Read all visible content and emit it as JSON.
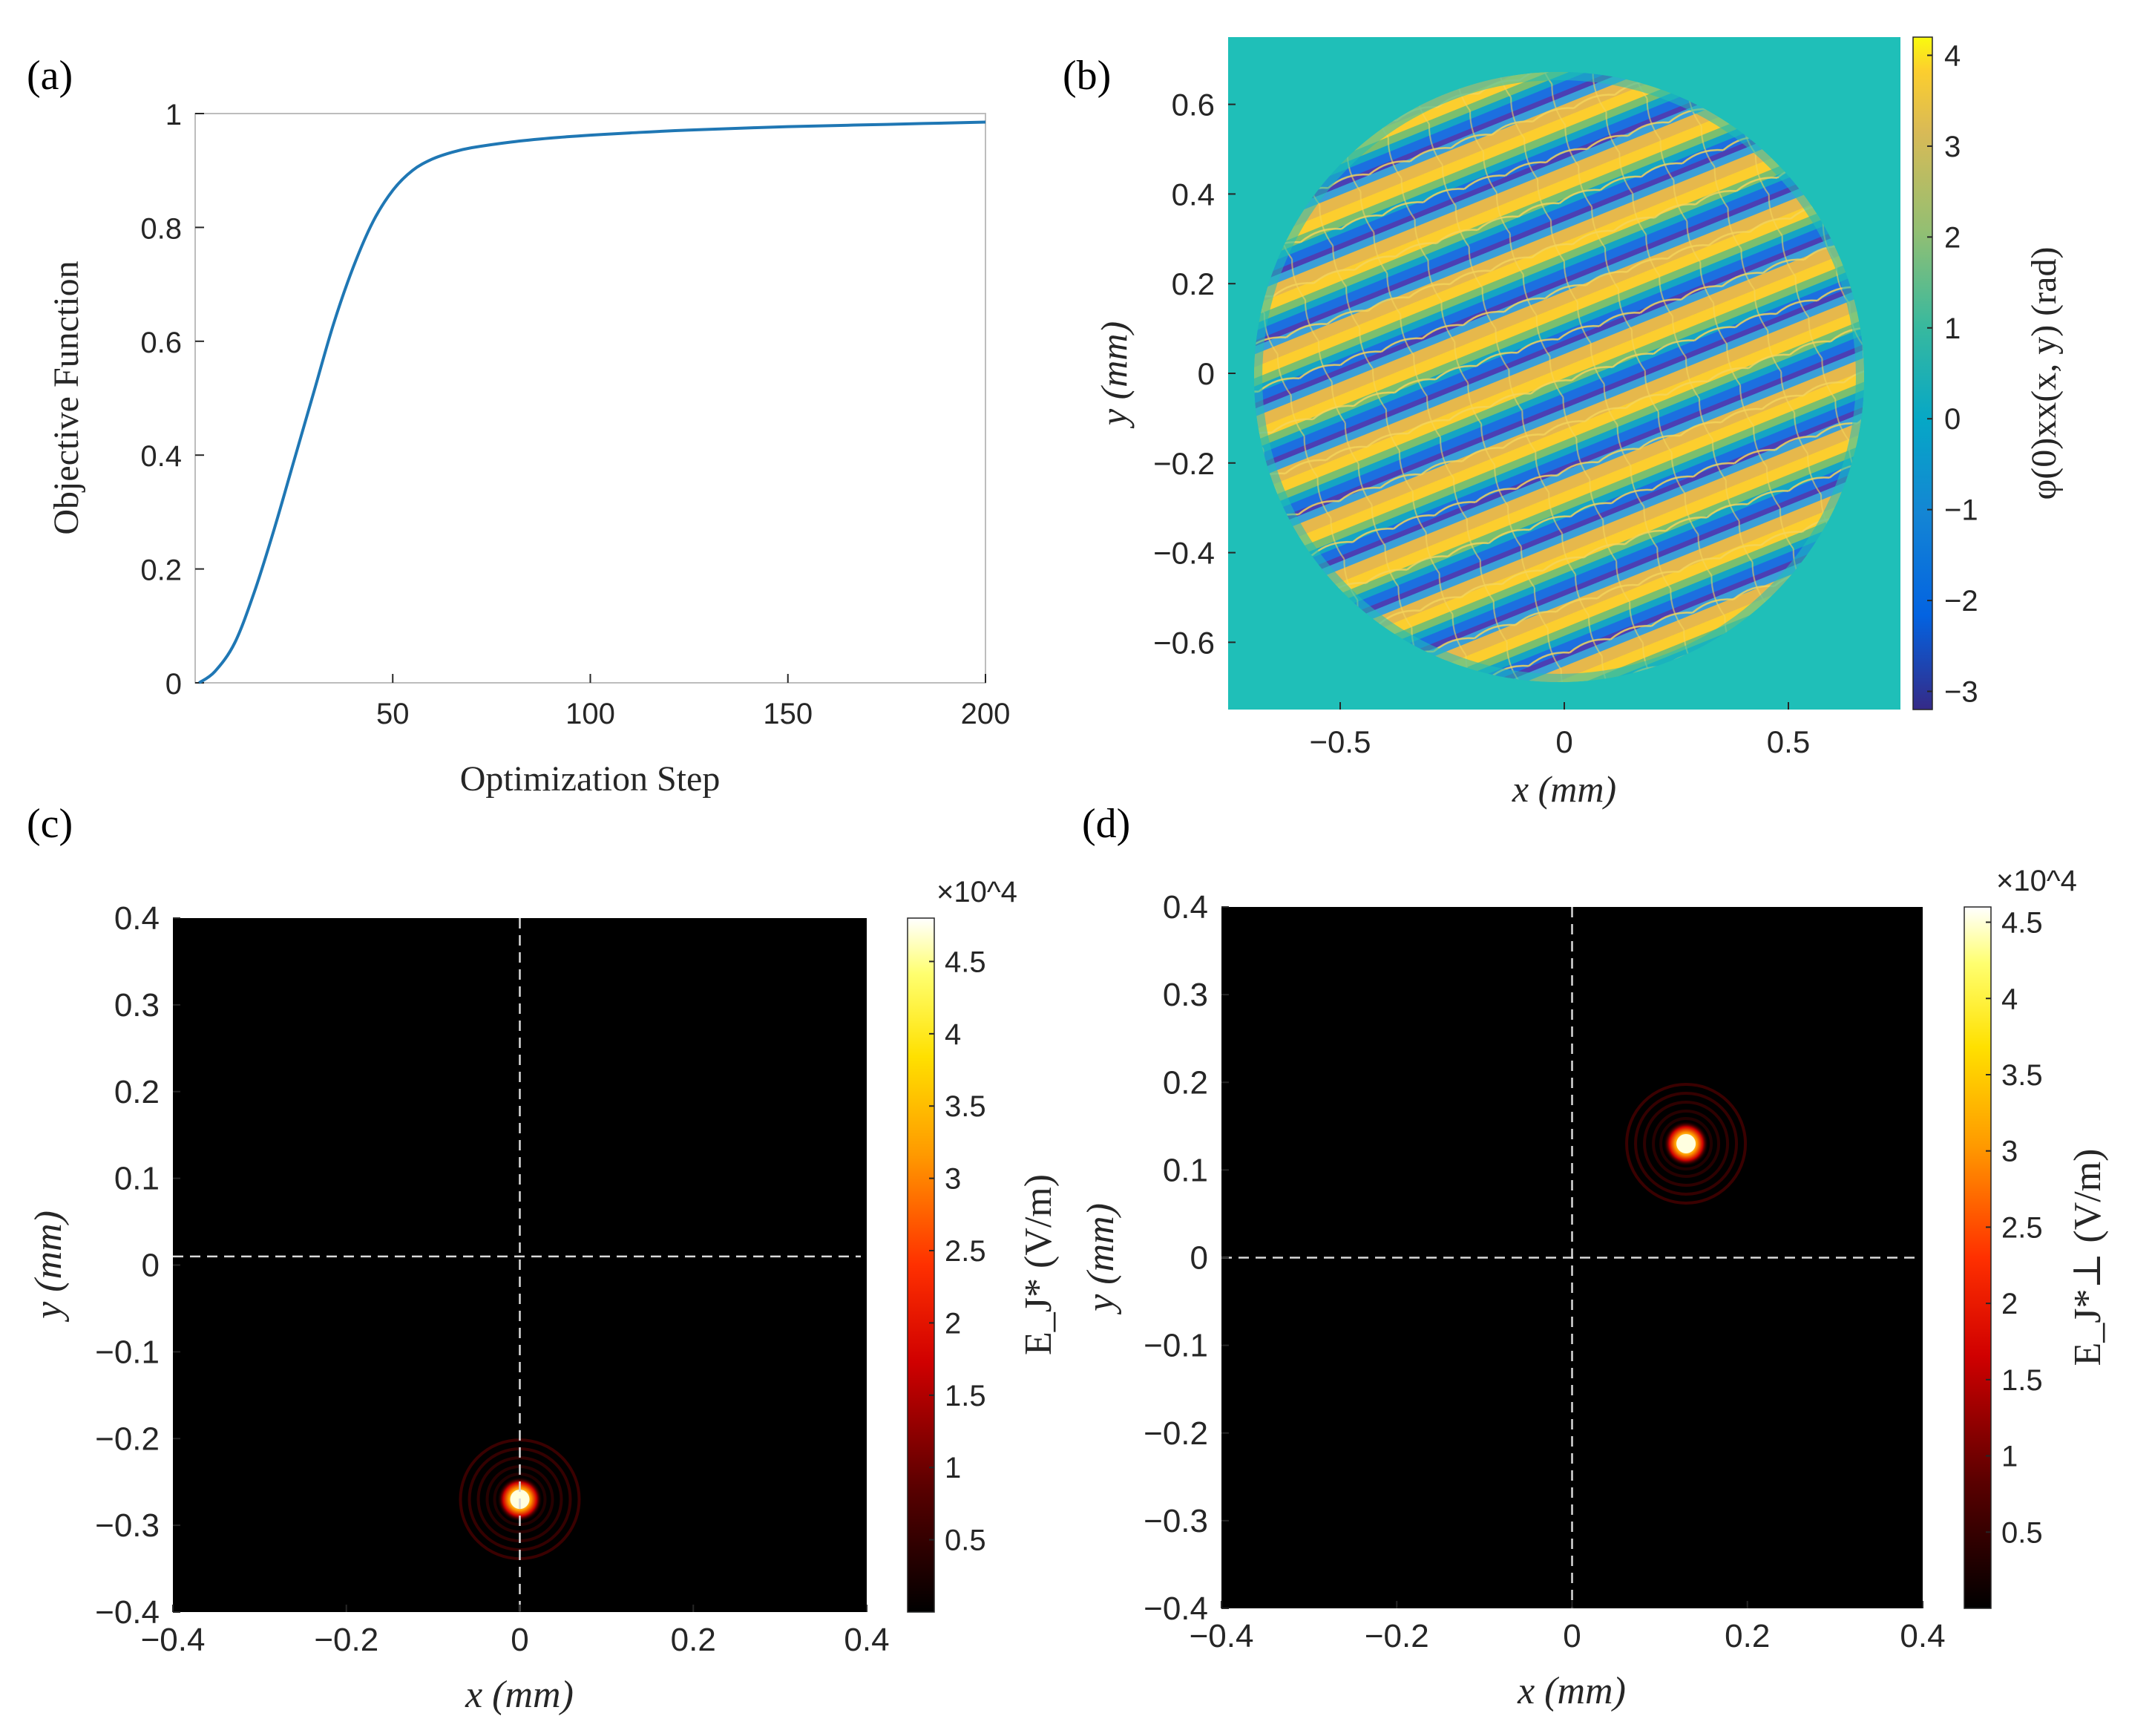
{
  "colors": {
    "line": "#1f77b4",
    "axis": "#262626",
    "box": "#bdbdbd",
    "phase_background": "#1fbfb8",
    "dashed": "#d9d9d9",
    "heat_bg": "#000000"
  },
  "chart_data": [
    {
      "id": "a",
      "panel_label": "(a)",
      "type": "line",
      "title": "",
      "xlabel": "Optimization Step",
      "ylabel": "Objective Function",
      "xlim": [
        0,
        200
      ],
      "ylim": [
        0,
        1
      ],
      "xticks": [
        50,
        100,
        150,
        200
      ],
      "yticks": [
        0,
        0.2,
        0.4,
        0.6,
        0.8,
        1
      ],
      "xtick_labels": [
        "50",
        "100",
        "150",
        "200"
      ],
      "ytick_labels": [
        "0",
        "0.2",
        "0.4",
        "0.6",
        "0.8",
        "1"
      ],
      "x": [
        1,
        5,
        10,
        15,
        20,
        25,
        30,
        35,
        40,
        45,
        50,
        55,
        60,
        65,
        70,
        80,
        90,
        100,
        110,
        125,
        150,
        175,
        200
      ],
      "y": [
        0.0,
        0.02,
        0.07,
        0.16,
        0.27,
        0.39,
        0.51,
        0.63,
        0.73,
        0.81,
        0.865,
        0.9,
        0.92,
        0.932,
        0.94,
        0.95,
        0.957,
        0.962,
        0.966,
        0.971,
        0.977,
        0.981,
        0.985
      ]
    },
    {
      "id": "b",
      "panel_label": "(b)",
      "type": "heatmap",
      "title": "",
      "xlabel": "x (mm)",
      "ylabel": "y (mm)",
      "xlim": [
        -0.75,
        0.75
      ],
      "ylim": [
        -0.75,
        0.75
      ],
      "xticks": [
        -0.5,
        0,
        0.5
      ],
      "yticks": [
        -0.6,
        -0.4,
        -0.2,
        0,
        0.2,
        0.4,
        0.6
      ],
      "xtick_labels": [
        "−0.5",
        "0",
        "0.5"
      ],
      "ytick_labels": [
        "−0.6",
        "−0.4",
        "−0.2",
        "0",
        "0.2",
        "0.4",
        "0.6"
      ],
      "aperture_radius_mm": 0.7,
      "colorbar": {
        "label": "φ(0)xx(x, y) (rad)",
        "range": [
          -3.2,
          4.2
        ],
        "ticks": [
          -3,
          -2,
          -1,
          0,
          1,
          2,
          3,
          4
        ],
        "tick_labels": [
          "−3",
          "−2",
          "−1",
          "0",
          "1",
          "2",
          "3",
          "4"
        ],
        "colormap": "parula"
      }
    },
    {
      "id": "c",
      "panel_label": "(c)",
      "type": "heatmap",
      "title": "",
      "xlabel": "x (mm)",
      "ylabel": "y (mm)",
      "xlim": [
        -0.4,
        0.4
      ],
      "ylim": [
        -0.4,
        0.4
      ],
      "xticks": [
        -0.4,
        -0.2,
        0,
        0.2,
        0.4
      ],
      "yticks": [
        -0.4,
        -0.3,
        -0.2,
        -0.1,
        0,
        0.1,
        0.2,
        0.3,
        0.4
      ],
      "xtick_labels": [
        "−0.4",
        "−0.2",
        "0",
        "0.2",
        "0.4"
      ],
      "ytick_labels": [
        "−0.4",
        "−0.3",
        "−0.2",
        "−0.1",
        "0",
        "0.1",
        "0.2",
        "0.3",
        "0.4"
      ],
      "focus": {
        "x": 0.0,
        "y": -0.27,
        "peak": 48000
      },
      "crosshair": {
        "x": 0.0,
        "y": 0.01
      },
      "colorbar": {
        "label": "E_J* (V/m)",
        "range": [
          0,
          48000
        ],
        "exponent_label": "×10^4",
        "ticks": [
          5000,
          10000,
          15000,
          20000,
          25000,
          30000,
          35000,
          40000,
          45000
        ],
        "tick_labels": [
          "0.5",
          "1",
          "1.5",
          "2",
          "2.5",
          "3",
          "3.5",
          "4",
          "4.5"
        ],
        "colormap": "hot"
      }
    },
    {
      "id": "d",
      "panel_label": "(d)",
      "type": "heatmap",
      "title": "",
      "xlabel": "x (mm)",
      "ylabel": "y (mm)",
      "xlim": [
        -0.4,
        0.4
      ],
      "ylim": [
        -0.4,
        0.4
      ],
      "xticks": [
        -0.4,
        -0.2,
        0,
        0.2,
        0.4
      ],
      "yticks": [
        -0.4,
        -0.3,
        -0.2,
        -0.1,
        0,
        0.1,
        0.2,
        0.3,
        0.4
      ],
      "xtick_labels": [
        "−0.4",
        "−0.2",
        "0",
        "0.2",
        "0.4"
      ],
      "ytick_labels": [
        "−0.4",
        "−0.3",
        "−0.2",
        "−0.1",
        "0",
        "0.1",
        "0.2",
        "0.3",
        "0.4"
      ],
      "focus": {
        "x": 0.13,
        "y": 0.13,
        "peak": 46000
      },
      "crosshair": {
        "x": 0.0,
        "y": 0.0
      },
      "colorbar": {
        "label": "E_J*⊥ (V/m)",
        "range": [
          0,
          46000
        ],
        "exponent_label": "×10^4",
        "ticks": [
          5000,
          10000,
          15000,
          20000,
          25000,
          30000,
          35000,
          40000,
          45000
        ],
        "tick_labels": [
          "0.5",
          "1",
          "1.5",
          "2",
          "2.5",
          "3",
          "3.5",
          "4",
          "4.5"
        ],
        "colormap": "hot"
      }
    }
  ]
}
